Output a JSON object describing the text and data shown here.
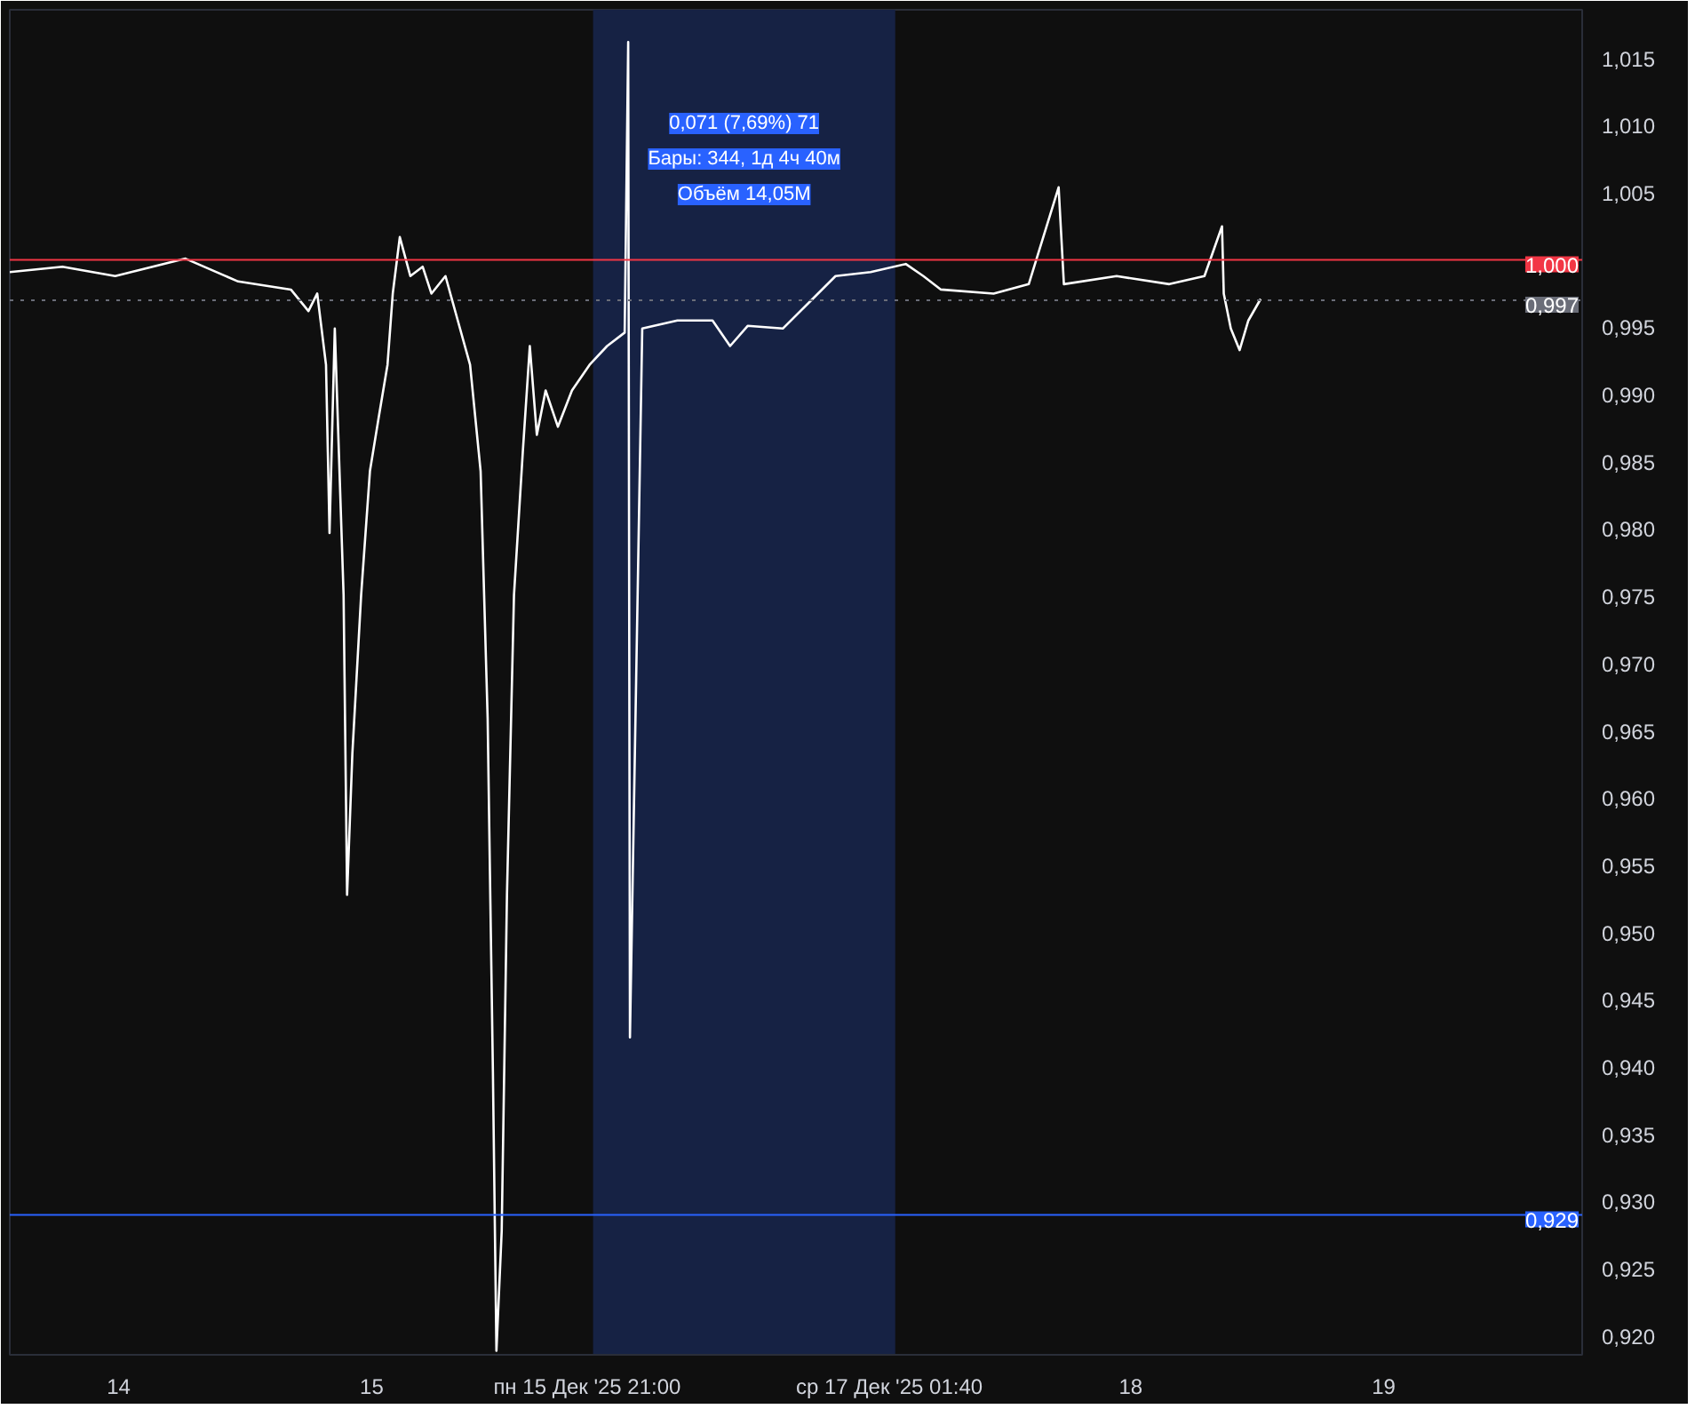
{
  "chart_data": {
    "type": "line",
    "x": [
      "2025-12-13T13:40",
      "2025-12-13T18:40",
      "2025-12-13T23:40",
      "2025-12-14T06:20",
      "2025-12-14T11:20",
      "2025-12-14T16:20",
      "2025-12-14T18:00",
      "2025-12-14T18:50",
      "2025-12-14T19:40",
      "2025-12-14T20:00",
      "2025-12-14T20:30",
      "2025-12-14T21:20",
      "2025-12-14T21:40",
      "2025-12-14T22:10",
      "2025-12-14T23:00",
      "2025-12-14T23:50",
      "2025-12-15T00:40",
      "2025-12-15T01:30",
      "2025-12-15T02:00",
      "2025-12-15T02:40",
      "2025-12-15T03:40",
      "2025-12-15T04:50",
      "2025-12-15T05:40",
      "2025-12-15T07:00",
      "2025-12-15T08:10",
      "2025-12-15T09:20",
      "2025-12-15T10:20",
      "2025-12-15T11:00",
      "2025-12-15T11:30",
      "2025-12-15T11:50",
      "2025-12-15T12:20",
      "2025-12-15T12:50",
      "2025-12-15T13:30",
      "2025-12-15T14:20",
      "2025-12-15T15:00",
      "2025-12-15T15:40",
      "2025-12-15T16:30",
      "2025-12-15T17:40",
      "2025-12-15T19:00",
      "2025-12-15T20:40",
      "2025-12-15T22:20",
      "2025-12-16T00:00",
      "2025-12-16T00:20",
      "2025-12-16T00:30",
      "2025-12-16T01:40",
      "2025-12-16T05:00",
      "2025-12-16T08:20",
      "2025-12-16T10:00",
      "2025-12-16T11:40",
      "2025-12-16T15:00",
      "2025-12-16T18:20",
      "2025-12-16T20:00",
      "2025-12-16T23:20",
      "2025-12-17T02:40",
      "2025-12-17T04:20",
      "2025-12-17T06:00",
      "2025-12-17T11:00",
      "2025-12-17T14:20",
      "2025-12-17T17:10",
      "2025-12-17T17:40",
      "2025-12-17T22:40",
      "2025-12-18T03:40",
      "2025-12-18T07:00",
      "2025-12-18T08:40",
      "2025-12-18T08:50",
      "2025-12-18T09:30",
      "2025-12-18T10:20",
      "2025-12-18T11:10",
      "2025-12-18T12:20"
    ],
    "series": [
      {
        "color": "#ffffff",
        "values": [
          0.9991,
          0.9995,
          0.9988,
          1.0001,
          0.9984,
          0.9978,
          0.9962,
          0.9975,
          0.9922,
          0.9797,
          0.9949,
          0.9751,
          0.9528,
          0.9633,
          0.9751,
          0.9843,
          0.9883,
          0.9922,
          0.9975,
          1.0017,
          0.9988,
          0.9995,
          0.9975,
          0.9988,
          0.9955,
          0.9922,
          0.9843,
          0.9659,
          0.9396,
          0.9189,
          0.9278,
          0.9528,
          0.9751,
          0.9857,
          0.9936,
          0.987,
          0.9903,
          0.9876,
          0.9903,
          0.9922,
          0.9936,
          0.9946,
          1.0162,
          0.9422,
          0.9949,
          0.9955,
          0.9955,
          0.9936,
          0.9951,
          0.9949,
          0.9975,
          0.9988,
          0.9991,
          0.9997,
          0.9988,
          0.9978,
          0.9975,
          0.9982,
          1.0054,
          0.9982,
          0.9988,
          0.9982,
          0.9988,
          1.0025,
          0.9975,
          0.9949,
          0.9933,
          0.9955,
          0.9971
        ]
      }
    ],
    "xlim": [
      "2025-12-13T13:40",
      "2025-12-19T18:50"
    ],
    "xticks": [
      {
        "value": "2025-12-14T00:00",
        "label": "14"
      },
      {
        "value": "2025-12-15T00:00",
        "label": "15"
      },
      {
        "value": "2025-12-15T21:00",
        "label": "пн 15 Дек '25   21:00"
      },
      {
        "value": "2025-12-17T01:40",
        "label": "ср 17 Дек '25   01:40"
      },
      {
        "value": "2025-12-18T00:00",
        "label": "18"
      },
      {
        "value": "2025-12-19T00:00",
        "label": "19"
      }
    ],
    "ylim": [
      0.9186,
      1.0186
    ],
    "yticks": [
      {
        "value": 0.92,
        "label": "0,920"
      },
      {
        "value": 0.925,
        "label": "0,925"
      },
      {
        "value": 0.93,
        "label": "0,930"
      },
      {
        "value": 0.935,
        "label": "0,935"
      },
      {
        "value": 0.94,
        "label": "0,940"
      },
      {
        "value": 0.945,
        "label": "0,945"
      },
      {
        "value": 0.95,
        "label": "0,950"
      },
      {
        "value": 0.955,
        "label": "0,955"
      },
      {
        "value": 0.96,
        "label": "0,960"
      },
      {
        "value": 0.965,
        "label": "0,965"
      },
      {
        "value": 0.97,
        "label": "0,970"
      },
      {
        "value": 0.975,
        "label": "0,975"
      },
      {
        "value": 0.98,
        "label": "0,980"
      },
      {
        "value": 0.985,
        "label": "0,985"
      },
      {
        "value": 0.99,
        "label": "0,990"
      },
      {
        "value": 0.995,
        "label": "0,995"
      },
      {
        "value": 1.005,
        "label": "1,005"
      },
      {
        "value": 1.01,
        "label": "1,010"
      },
      {
        "value": 1.015,
        "label": "1,015"
      }
    ],
    "bands": [
      {
        "axis": "x",
        "from": "2025-12-15T21:00",
        "to": "2025-12-17T01:40",
        "color": "#162244"
      }
    ],
    "ref_lines": [
      {
        "axis": "y",
        "value": 1.0,
        "label": "1,000",
        "color": "#f23645",
        "line_style": "solid"
      },
      {
        "axis": "y",
        "value": 0.997,
        "label": "0,997",
        "color": "#6a6d78",
        "line_style": "dotted"
      },
      {
        "axis": "y",
        "value": 0.929,
        "label": "0,929",
        "color": "#2962ff",
        "line_style": "solid"
      }
    ],
    "annotations": [
      "0,071 (7,69%) 71",
      "Бары: 344, 1д 4ч 40м",
      "Объём 14,05M"
    ],
    "grid": false
  }
}
